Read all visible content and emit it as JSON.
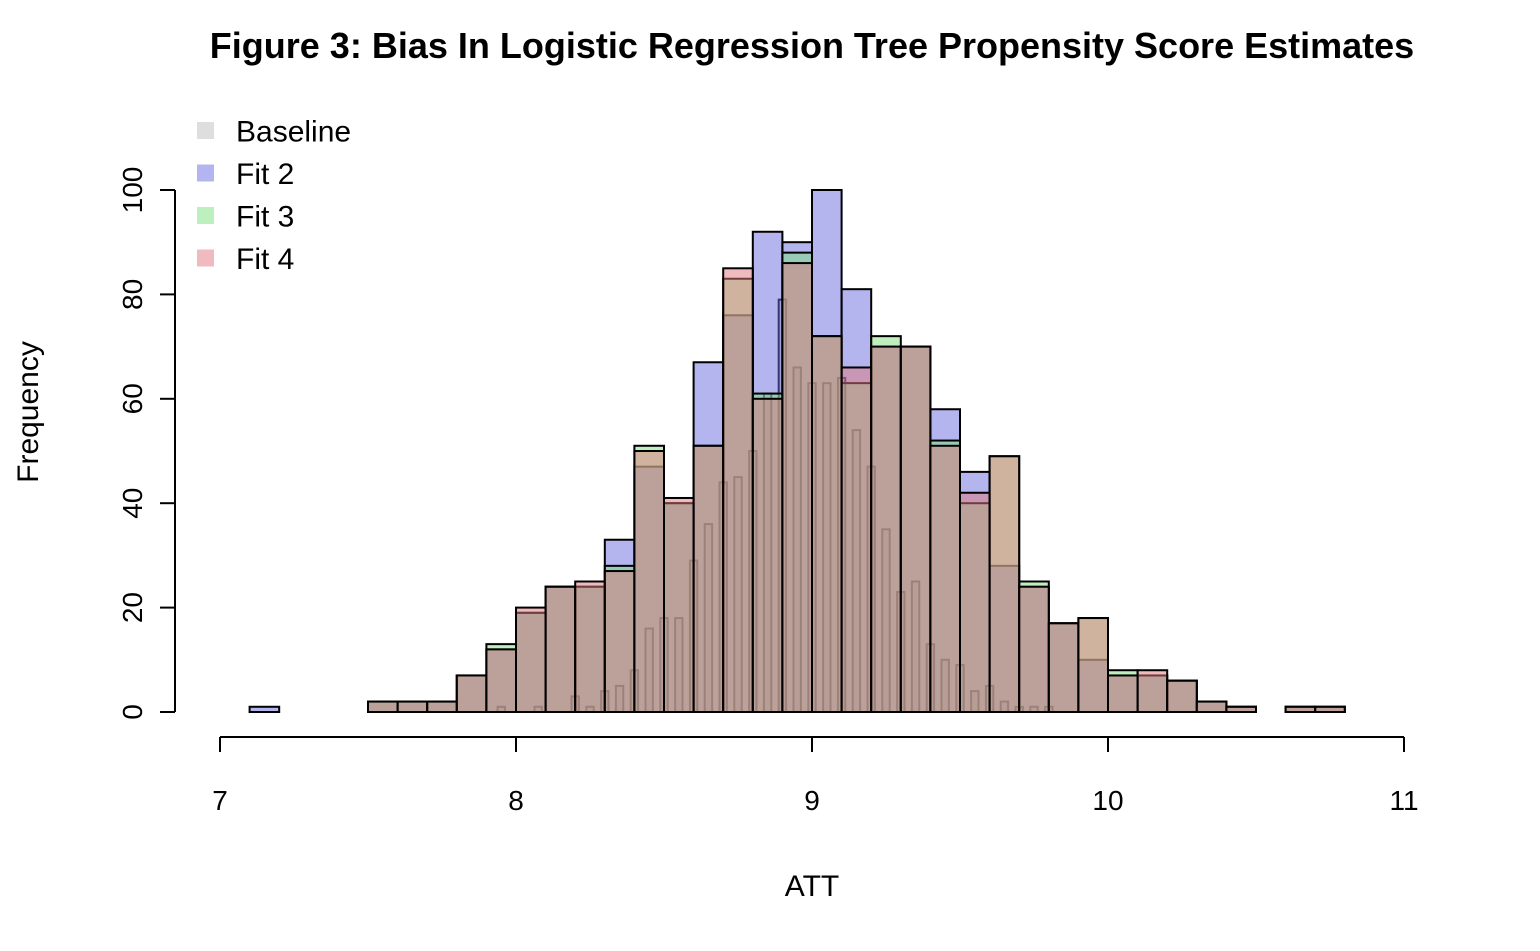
{
  "chart_data": {
    "type": "histogram",
    "title": "Figure 3: Bias In Logistic Regression Tree Propensity Score Estimates",
    "xlabel": "ATT",
    "ylabel": "Frequency",
    "xlim": [
      7,
      11
    ],
    "ylim": [
      0,
      100
    ],
    "xticks": [
      "7",
      "8",
      "9",
      "10",
      "11"
    ],
    "yticks": [
      "0",
      "20",
      "40",
      "60",
      "80",
      "100"
    ],
    "legend_position": "top-left",
    "series": [
      {
        "name": "Baseline",
        "color": "#bebebe",
        "bin_width": 0.025,
        "x": [
          7.95,
          8.075,
          8.2,
          8.25,
          8.3,
          8.35,
          8.4,
          8.45,
          8.5,
          8.55,
          8.6,
          8.65,
          8.7,
          8.75,
          8.8,
          8.85,
          8.9,
          8.95,
          9.0,
          9.05,
          9.1,
          9.15,
          9.2,
          9.25,
          9.3,
          9.35,
          9.4,
          9.45,
          9.5,
          9.55,
          9.6,
          9.65,
          9.7,
          9.75,
          9.8
        ],
        "values": [
          1,
          1,
          3,
          1,
          4,
          5,
          8,
          16,
          18,
          18,
          29,
          36,
          44,
          45,
          50,
          61,
          79,
          66,
          63,
          63,
          64,
          54,
          47,
          35,
          23,
          25,
          13,
          10,
          9,
          4,
          5,
          2,
          1,
          1,
          1
        ]
      },
      {
        "name": "Fit 2",
        "color": "#6a6ae0",
        "bin_width": 0.1,
        "x": [
          7.15,
          7.25,
          7.35,
          7.45,
          7.55,
          7.65,
          7.75,
          7.85,
          7.95,
          8.05,
          8.15,
          8.25,
          8.35,
          8.45,
          8.55,
          8.65,
          8.75,
          8.85,
          8.95,
          9.05,
          9.15,
          9.25,
          9.35,
          9.45,
          9.55,
          9.65,
          9.75,
          9.85,
          9.95,
          10.05,
          10.15,
          10.25,
          10.35,
          10.45,
          10.55,
          10.65,
          10.75
        ],
        "values": [
          1,
          0,
          0,
          0,
          2,
          2,
          2,
          7,
          12,
          19,
          24,
          24,
          33,
          47,
          40,
          67,
          76,
          92,
          90,
          100,
          81,
          70,
          70,
          58,
          46,
          28,
          24,
          17,
          10,
          7,
          7,
          6,
          2,
          1,
          0,
          1,
          1
        ]
      },
      {
        "name": "Fit 3",
        "color": "#7ee07e",
        "bin_width": 0.1,
        "x": [
          7.15,
          7.25,
          7.35,
          7.45,
          7.55,
          7.65,
          7.75,
          7.85,
          7.95,
          8.05,
          8.15,
          8.25,
          8.35,
          8.45,
          8.55,
          8.65,
          8.75,
          8.85,
          8.95,
          9.05,
          9.15,
          9.25,
          9.35,
          9.45,
          9.55,
          9.65,
          9.75,
          9.85,
          9.95,
          10.05,
          10.15,
          10.25,
          10.35,
          10.45,
          10.55,
          10.65,
          10.75
        ],
        "values": [
          0,
          0,
          0,
          0,
          2,
          2,
          2,
          7,
          13,
          19,
          24,
          24,
          28,
          51,
          40,
          51,
          83,
          61,
          88,
          72,
          63,
          72,
          70,
          52,
          40,
          49,
          25,
          17,
          18,
          8,
          7,
          6,
          2,
          1,
          0,
          1,
          1
        ]
      },
      {
        "name": "Fit 4",
        "color": "#e0787e",
        "bin_width": 0.1,
        "x": [
          7.15,
          7.25,
          7.35,
          7.45,
          7.55,
          7.65,
          7.75,
          7.85,
          7.95,
          8.05,
          8.15,
          8.25,
          8.35,
          8.45,
          8.55,
          8.65,
          8.75,
          8.85,
          8.95,
          9.05,
          9.15,
          9.25,
          9.35,
          9.45,
          9.55,
          9.65,
          9.75,
          9.85,
          9.95,
          10.05,
          10.15,
          10.25,
          10.35,
          10.45,
          10.55,
          10.65,
          10.75
        ],
        "values": [
          0,
          0,
          0,
          0,
          2,
          2,
          2,
          7,
          12,
          20,
          24,
          25,
          27,
          50,
          41,
          51,
          85,
          60,
          86,
          72,
          66,
          70,
          70,
          51,
          42,
          49,
          24,
          17,
          18,
          7,
          8,
          6,
          2,
          1,
          0,
          1,
          1
        ]
      }
    ]
  }
}
